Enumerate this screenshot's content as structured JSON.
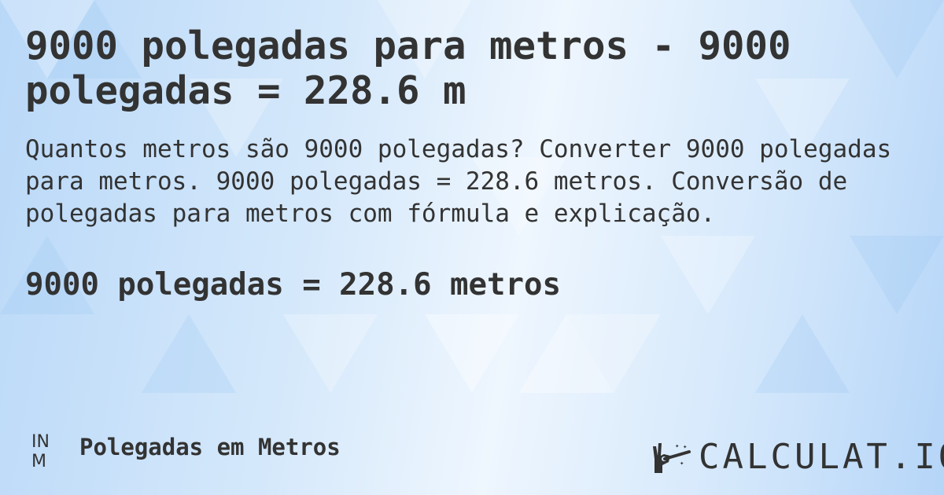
{
  "title": "9000 polegadas para metros - 9000 polegadas = 228.6 m",
  "description": "Quantos metros são 9000 polegadas? Converter 9000 polegadas para metros. 9000 polegadas = 228.6 metros. Conversão de polegadas para metros com fórmula e explicação.",
  "result": "9000 polegadas = 228.6 metros",
  "category": {
    "icon_text_top": "IN",
    "icon_text_bottom": "M",
    "label": "Polegadas em Metros"
  },
  "brand": {
    "name": "CALCULAT.IO",
    "icon": "magic-hand-icon"
  },
  "colors": {
    "text": "#333333",
    "background": "#d6e9fb"
  }
}
